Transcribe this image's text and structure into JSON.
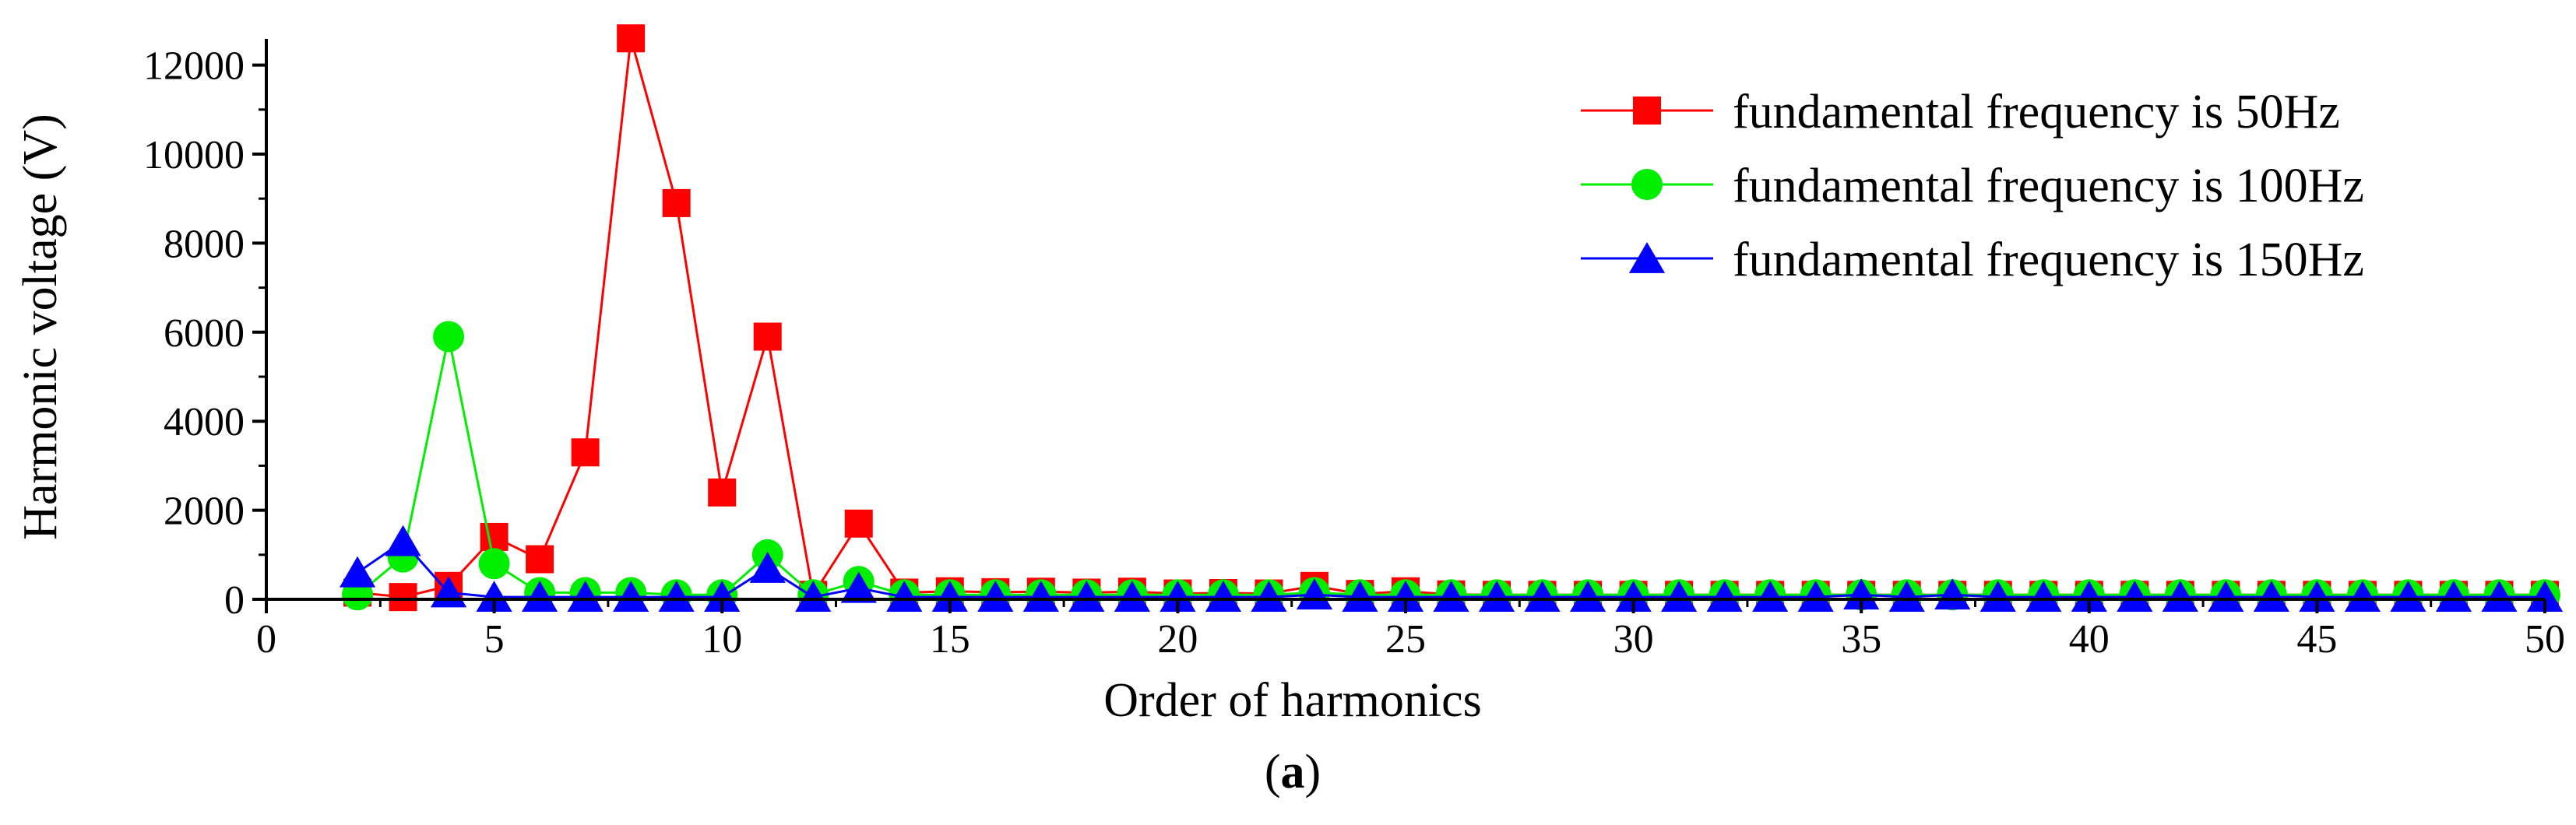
{
  "chart_data": {
    "type": "line",
    "title": "",
    "xlabel": "Order of harmonics",
    "ylabel": "Harmonic voltage (V)",
    "xlim": [
      0,
      50
    ],
    "ylim": [
      0,
      12500
    ],
    "x_ticks": [
      0,
      5,
      10,
      15,
      20,
      25,
      30,
      35,
      40,
      45,
      50
    ],
    "y_ticks": [
      0,
      2000,
      4000,
      6000,
      8000,
      10000,
      12000
    ],
    "grid": false,
    "legend_position": "top-right",
    "x": [
      2,
      3,
      4,
      5,
      6,
      7,
      8,
      9,
      10,
      11,
      12,
      13,
      14,
      15,
      16,
      17,
      18,
      19,
      20,
      21,
      22,
      23,
      24,
      25,
      26,
      27,
      28,
      29,
      30,
      31,
      32,
      33,
      34,
      35,
      36,
      37,
      38,
      39,
      40,
      41,
      42,
      43,
      44,
      45,
      46,
      47,
      48,
      49,
      50
    ],
    "series": [
      {
        "name": "fundamental frequency is 50Hz",
        "color": "#ff0000",
        "marker": "square",
        "values": [
          150,
          50,
          300,
          1400,
          900,
          3300,
          12600,
          8900,
          2400,
          5900,
          100,
          1700,
          150,
          180,
          160,
          170,
          150,
          170,
          130,
          140,
          130,
          300,
          120,
          180,
          110,
          100,
          100,
          100,
          100,
          100,
          100,
          100,
          100,
          100,
          100,
          100,
          100,
          100,
          100,
          100,
          100,
          100,
          100,
          100,
          100,
          100,
          100,
          100,
          100
        ]
      },
      {
        "name": "fundamental frequency is 100Hz",
        "color": "#00ee00",
        "marker": "circle",
        "values": [
          100,
          950,
          5900,
          800,
          150,
          150,
          150,
          100,
          100,
          1000,
          100,
          400,
          100,
          100,
          100,
          100,
          100,
          100,
          100,
          100,
          100,
          150,
          100,
          100,
          100,
          100,
          100,
          100,
          100,
          100,
          100,
          100,
          100,
          100,
          100,
          100,
          100,
          100,
          100,
          100,
          100,
          100,
          100,
          100,
          100,
          100,
          100,
          100,
          100
        ]
      },
      {
        "name": "fundamental frequency is 150Hz",
        "color": "#0000ff",
        "marker": "triangle",
        "values": [
          600,
          1300,
          150,
          50,
          50,
          50,
          50,
          50,
          50,
          700,
          50,
          250,
          50,
          50,
          50,
          50,
          50,
          50,
          50,
          50,
          50,
          100,
          50,
          50,
          50,
          50,
          50,
          50,
          50,
          50,
          50,
          50,
          50,
          100,
          50,
          100,
          50,
          50,
          50,
          50,
          50,
          50,
          50,
          50,
          50,
          50,
          50,
          50,
          50
        ]
      }
    ]
  },
  "caption": {
    "open": "(",
    "letter": "a",
    "close": ")"
  }
}
